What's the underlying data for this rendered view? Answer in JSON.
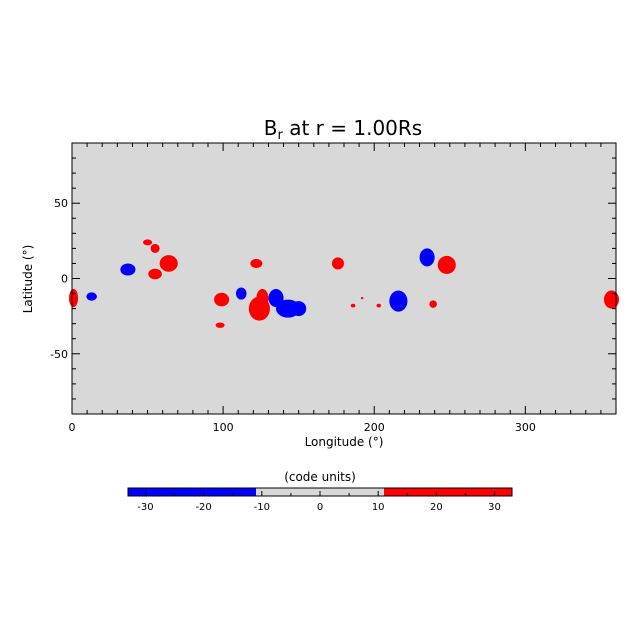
{
  "chart_data": {
    "type": "heatmap",
    "title": {
      "main": "B",
      "sub": "r",
      "rest": " at r = 1.00Rs"
    },
    "xlabel": "Longitude (°)",
    "ylabel": "Latitude (°)",
    "xlim": [
      0,
      360
    ],
    "ylim": [
      -90,
      90
    ],
    "x_major_ticks": [
      0,
      100,
      200,
      300
    ],
    "y_major_ticks": [
      50,
      0,
      -50
    ],
    "background_value": 0,
    "grid": false,
    "colorbar": {
      "title": "(code units)",
      "range": [
        -33,
        33
      ],
      "ticks": [
        -30,
        -20,
        -10,
        0,
        10,
        20,
        30
      ],
      "levels": [
        {
          "from": -33,
          "to": -11,
          "color": "#0000ff"
        },
        {
          "from": -11,
          "to": 11,
          "color": "#d8d8d8"
        },
        {
          "from": 11,
          "to": 33,
          "color": "#ff0000"
        }
      ]
    },
    "colors": {
      "positive": "#ff0000",
      "negative": "#0000ff",
      "neutral": "#d8d8d8"
    },
    "regions": [
      {
        "polarity": "positive",
        "lon": 1,
        "lat": -13,
        "dlon": 3,
        "dlat": 6
      },
      {
        "polarity": "negative",
        "lon": 13,
        "lat": -12,
        "dlon": 3.5,
        "dlat": 2.8
      },
      {
        "polarity": "negative",
        "lon": 37,
        "lat": 6,
        "dlon": 5,
        "dlat": 4
      },
      {
        "polarity": "positive",
        "lon": 50,
        "lat": 24,
        "dlon": 3,
        "dlat": 2
      },
      {
        "polarity": "positive",
        "lon": 55,
        "lat": 20,
        "dlon": 3,
        "dlat": 3
      },
      {
        "polarity": "positive",
        "lon": 55,
        "lat": 3,
        "dlon": 4.5,
        "dlat": 3.5
      },
      {
        "polarity": "positive",
        "lon": 64,
        "lat": 10,
        "dlon": 6,
        "dlat": 5.5
      },
      {
        "polarity": "positive",
        "lon": 99,
        "lat": -14,
        "dlon": 5,
        "dlat": 4.5
      },
      {
        "polarity": "positive",
        "lon": 98,
        "lat": -31,
        "dlon": 3,
        "dlat": 1.8
      },
      {
        "polarity": "negative",
        "lon": 112,
        "lat": -10,
        "dlon": 3.5,
        "dlat": 4
      },
      {
        "polarity": "positive",
        "lon": 122,
        "lat": 10,
        "dlon": 4,
        "dlat": 3
      },
      {
        "polarity": "positive",
        "lon": 124,
        "lat": -20,
        "dlon": 7,
        "dlat": 8
      },
      {
        "polarity": "positive",
        "lon": 126,
        "lat": -13,
        "dlon": 4,
        "dlat": 6
      },
      {
        "polarity": "negative",
        "lon": 135,
        "lat": -13,
        "dlon": 5,
        "dlat": 6
      },
      {
        "polarity": "negative",
        "lon": 143,
        "lat": -20,
        "dlon": 8,
        "dlat": 6
      },
      {
        "polarity": "negative",
        "lon": 150,
        "lat": -20,
        "dlon": 5,
        "dlat": 5
      },
      {
        "polarity": "positive",
        "lon": 176,
        "lat": 10,
        "dlon": 4,
        "dlat": 4
      },
      {
        "polarity": "positive",
        "lon": 186,
        "lat": -18,
        "dlon": 1.5,
        "dlat": 1.2
      },
      {
        "polarity": "positive",
        "lon": 192,
        "lat": -13,
        "dlon": 0.8,
        "dlat": 0.8
      },
      {
        "polarity": "positive",
        "lon": 203,
        "lat": -18,
        "dlon": 1.5,
        "dlat": 1.2
      },
      {
        "polarity": "negative",
        "lon": 216,
        "lat": -15,
        "dlon": 6,
        "dlat": 7
      },
      {
        "polarity": "negative",
        "lon": 235,
        "lat": 14,
        "dlon": 5,
        "dlat": 6
      },
      {
        "polarity": "positive",
        "lon": 239,
        "lat": -17,
        "dlon": 2.5,
        "dlat": 2.5
      },
      {
        "polarity": "positive",
        "lon": 248,
        "lat": 9,
        "dlon": 6,
        "dlat": 6
      },
      {
        "polarity": "positive",
        "lon": 357,
        "lat": -14,
        "dlon": 5,
        "dlat": 6
      }
    ]
  }
}
